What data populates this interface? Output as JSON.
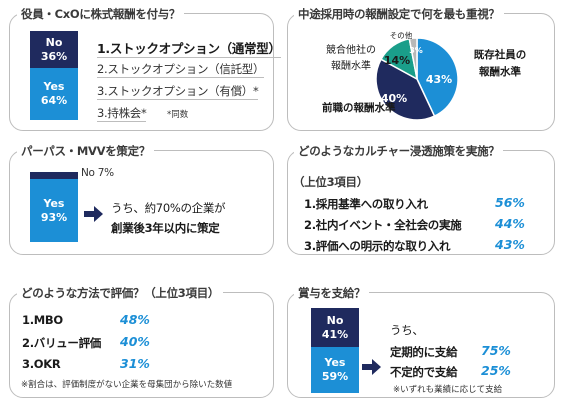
{
  "panel1": {
    "title": "役員・CxOに株式報酬を付与？",
    "no_label": "No",
    "no_pct": "36%",
    "yes_label": "Yes",
    "yes_pct": "64%",
    "options": [
      "1.ストックオプション（通常型）",
      "2.ストックオプション（信託型）",
      "3.ストックオプション（有償）*",
      "3.持株会*"
    ],
    "footnote": "*同数"
  },
  "panel2": {
    "title": "中途採用時の報酬設定で何を最も重視？",
    "other_label": "その他"
  },
  "panel3": {
    "title": "パーパス・MVVを策定？",
    "no_text": "No  7%",
    "yes_label": "Yes",
    "yes_pct": "93%",
    "line1": "うち、約70%の企業が",
    "line2": "創業後3年以内に策定"
  },
  "panel4": {
    "title": "どのようなカルチャー浸透施策を実施？",
    "subtitle": "（上位3項目）",
    "items": [
      {
        "label": "1.採用基準への取り入れ",
        "pct": "56%"
      },
      {
        "label": "2.社内イベント・全社会の実施",
        "pct": "44%"
      },
      {
        "label": "3.評価への明示的な取り入れ",
        "pct": "43%"
      }
    ]
  },
  "panel5": {
    "title": "どのような方法で評価？（上位3項目）",
    "items": [
      {
        "label": "1.MBO",
        "pct": "48%"
      },
      {
        "label": "2.バリュー評価",
        "pct": "40%"
      },
      {
        "label": "3.OKR",
        "pct": "31%"
      }
    ],
    "footnote": "※割合は、評価制度がない企業を母集団から除いた数値"
  },
  "panel6": {
    "title": "賞与を支給？",
    "no_label": "No",
    "no_pct": "41%",
    "yes_label": "Yes",
    "yes_pct": "59%",
    "intro": "うち、",
    "items": [
      {
        "label": "定期的に支給",
        "pct": "75%"
      },
      {
        "label": "不定的で支給",
        "pct": "25%"
      }
    ],
    "footnote": "※いずれも業績に応じて支給"
  },
  "colors": {
    "navy": "#1f2a5e",
    "blue": "#1c8fd6",
    "teal": "#1a9e8a",
    "gray": "#b8b8b8",
    "pct_blue": "#1c8fd6"
  },
  "chart_data": [
    {
      "type": "bar",
      "title": "役員・CxOに株式報酬を付与？",
      "categories": [
        "No",
        "Yes"
      ],
      "values": [
        36,
        64
      ],
      "stacked": true,
      "unit": "%"
    },
    {
      "type": "pie",
      "title": "中途採用時の報酬設定で何を最も重視？",
      "slices": [
        {
          "label": "既存社員の報酬水準",
          "value": 43,
          "value_label": "43%",
          "color": "#1c8fd6"
        },
        {
          "label": "前職の報酬水準",
          "value": 40,
          "value_label": "40%",
          "color": "#1f2a5e"
        },
        {
          "label": "競合他社の報酬水準",
          "value": 14,
          "value_label": "14%",
          "color": "#1a9e8a"
        },
        {
          "label": "その他",
          "value": 3,
          "value_label": "3%",
          "color": "#b8b8b8"
        }
      ]
    },
    {
      "type": "bar",
      "title": "パーパス・MVVを策定？",
      "categories": [
        "No",
        "Yes"
      ],
      "values": [
        7,
        93
      ],
      "stacked": true,
      "unit": "%"
    },
    {
      "type": "bar",
      "title": "賞与を支給？",
      "categories": [
        "No",
        "Yes"
      ],
      "values": [
        41,
        59
      ],
      "stacked": true,
      "unit": "%"
    }
  ]
}
